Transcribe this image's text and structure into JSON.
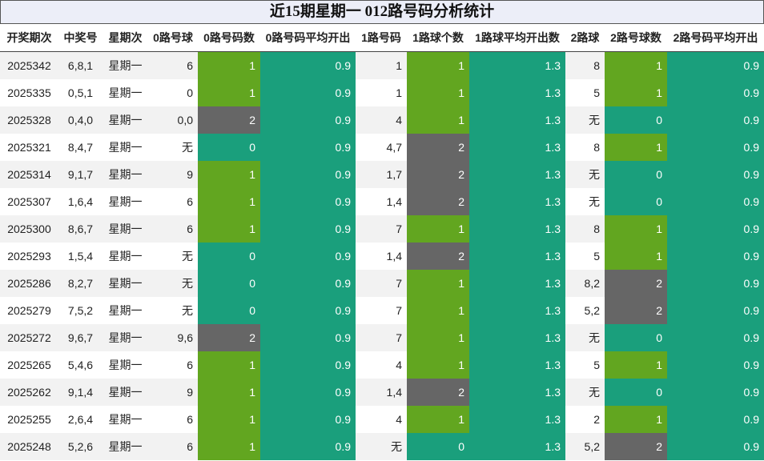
{
  "title": "近15期星期一 012路号码分析统计",
  "headers": [
    "开奖期次",
    "中奖号",
    "星期次",
    "0路号球",
    "0路号码数",
    "0路号码平均开出",
    "1路号码",
    "1路球个数",
    "1路球平均开出数",
    "2路球",
    "2路号球数",
    "2路号码平均开出"
  ],
  "avg": {
    "zero": "0.9",
    "one": "1.3",
    "two": "0.9"
  },
  "rows": [
    {
      "period": "2025342",
      "numbers": "6,8,1",
      "weekday": "星期一",
      "r0": "6",
      "c0": "1",
      "r1": "1",
      "c1": "1",
      "r2": "8",
      "c2": "1"
    },
    {
      "period": "2025335",
      "numbers": "0,5,1",
      "weekday": "星期一",
      "r0": "0",
      "c0": "1",
      "r1": "1",
      "c1": "1",
      "r2": "5",
      "c2": "1"
    },
    {
      "period": "2025328",
      "numbers": "0,4,0",
      "weekday": "星期一",
      "r0": "0,0",
      "c0": "2",
      "r1": "4",
      "c1": "1",
      "r2": "无",
      "c2": "0"
    },
    {
      "period": "2025321",
      "numbers": "8,4,7",
      "weekday": "星期一",
      "r0": "无",
      "c0": "0",
      "r1": "4,7",
      "c1": "2",
      "r2": "8",
      "c2": "1"
    },
    {
      "period": "2025314",
      "numbers": "9,1,7",
      "weekday": "星期一",
      "r0": "9",
      "c0": "1",
      "r1": "1,7",
      "c1": "2",
      "r2": "无",
      "c2": "0"
    },
    {
      "period": "2025307",
      "numbers": "1,6,4",
      "weekday": "星期一",
      "r0": "6",
      "c0": "1",
      "r1": "1,4",
      "c1": "2",
      "r2": "无",
      "c2": "0"
    },
    {
      "period": "2025300",
      "numbers": "8,6,7",
      "weekday": "星期一",
      "r0": "6",
      "c0": "1",
      "r1": "7",
      "c1": "1",
      "r2": "8",
      "c2": "1"
    },
    {
      "period": "2025293",
      "numbers": "1,5,4",
      "weekday": "星期一",
      "r0": "无",
      "c0": "0",
      "r1": "1,4",
      "c1": "2",
      "r2": "5",
      "c2": "1"
    },
    {
      "period": "2025286",
      "numbers": "8,2,7",
      "weekday": "星期一",
      "r0": "无",
      "c0": "0",
      "r1": "7",
      "c1": "1",
      "r2": "8,2",
      "c2": "2"
    },
    {
      "period": "2025279",
      "numbers": "7,5,2",
      "weekday": "星期一",
      "r0": "无",
      "c0": "0",
      "r1": "7",
      "c1": "1",
      "r2": "5,2",
      "c2": "2"
    },
    {
      "period": "2025272",
      "numbers": "9,6,7",
      "weekday": "星期一",
      "r0": "9,6",
      "c0": "2",
      "r1": "7",
      "c1": "1",
      "r2": "无",
      "c2": "0"
    },
    {
      "period": "2025265",
      "numbers": "5,4,6",
      "weekday": "星期一",
      "r0": "6",
      "c0": "1",
      "r1": "4",
      "c1": "1",
      "r2": "5",
      "c2": "1"
    },
    {
      "period": "2025262",
      "numbers": "9,1,4",
      "weekday": "星期一",
      "r0": "9",
      "c0": "1",
      "r1": "1,4",
      "c1": "2",
      "r2": "无",
      "c2": "0"
    },
    {
      "period": "2025255",
      "numbers": "2,6,4",
      "weekday": "星期一",
      "r0": "6",
      "c0": "1",
      "r1": "4",
      "c1": "1",
      "r2": "2",
      "c2": "1"
    },
    {
      "period": "2025248",
      "numbers": "5,2,6",
      "weekday": "星期一",
      "r0": "6",
      "c0": "1",
      "r1": "无",
      "c1": "0",
      "r2": "5,2",
      "c2": "2"
    }
  ],
  "colors": {
    "count_0": "#1a9f7c",
    "count_1": "#62a620",
    "count_2": "#666666",
    "average": "#1a9f7c"
  }
}
